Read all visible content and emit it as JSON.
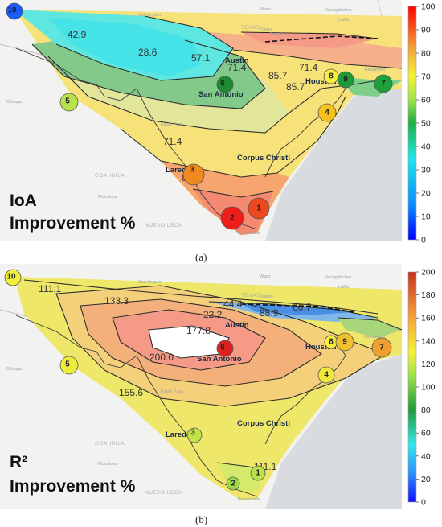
{
  "panels": [
    {
      "id": "a",
      "caption": "(a)",
      "metric_label_line1": "IoA",
      "metric_label_line2": "Improvement %",
      "colorbar": {
        "min": 0,
        "max": 100,
        "ticks": [
          "100",
          "90",
          "80",
          "70",
          "60",
          "50",
          "40",
          "30",
          "20",
          "10",
          "0"
        ]
      },
      "contour_labels": [
        "28.6",
        "42.9",
        "57.1",
        "71.4",
        "85.7",
        "85.7",
        "71.4",
        "85.7",
        "71.4"
      ],
      "sites": [
        {
          "id": "1",
          "color": "#f0481e"
        },
        {
          "id": "2",
          "color": "#f01d1d"
        },
        {
          "id": "3",
          "color": "#f08a1f"
        },
        {
          "id": "4",
          "color": "#f5c21d"
        },
        {
          "id": "5",
          "color": "#b8e04a"
        },
        {
          "id": "6",
          "color": "#1e8a2e"
        },
        {
          "id": "7",
          "color": "#1ea03a"
        },
        {
          "id": "8",
          "color": "#f6ee3a"
        },
        {
          "id": "9",
          "color": "#1e9a36"
        },
        {
          "id": "10",
          "color": "#1a5cff"
        }
      ]
    },
    {
      "id": "b",
      "caption": "(b)",
      "metric_label_line1": "R²",
      "metric_label_line2": "Improvement %",
      "colorbar": {
        "min": 0,
        "max": 200,
        "ticks": [
          "200",
          "180",
          "160",
          "140",
          "120",
          "100",
          "80",
          "60",
          "40",
          "20",
          "0"
        ]
      },
      "contour_labels": [
        "111.1",
        "133.3",
        "177.8",
        "200.0",
        "155.6",
        "66.7",
        "44.4",
        "22.2",
        "88.9",
        "111.1"
      ],
      "sites": [
        {
          "id": "1",
          "color": "#b7e04a"
        },
        {
          "id": "2",
          "color": "#9fd94a"
        },
        {
          "id": "3",
          "color": "#c4e34a"
        },
        {
          "id": "4",
          "color": "#f0e83a"
        },
        {
          "id": "5",
          "color": "#ecec3a"
        },
        {
          "id": "6",
          "color": "#e02020"
        },
        {
          "id": "7",
          "color": "#f0a030"
        },
        {
          "id": "8",
          "color": "#f6f03a"
        },
        {
          "id": "9",
          "color": "#f0c030"
        },
        {
          "id": "10",
          "color": "#f0f03a"
        }
      ]
    }
  ],
  "map_labels": {
    "cities": [
      "Austin",
      "Houston",
      "San Antonio",
      "Corpus Christi",
      "Laredo"
    ],
    "regions": [
      "TEXAS",
      "COAHUILA",
      "NUEVO LEON"
    ],
    "places": [
      "San Angelo",
      "Waco",
      "Killeen",
      "Temple",
      "Nacogdoches",
      "Lufkin",
      "Beaumont",
      "Ojinaga",
      "Del Rio",
      "Eagle Pass",
      "Monclova",
      "Brownsville"
    ]
  }
}
